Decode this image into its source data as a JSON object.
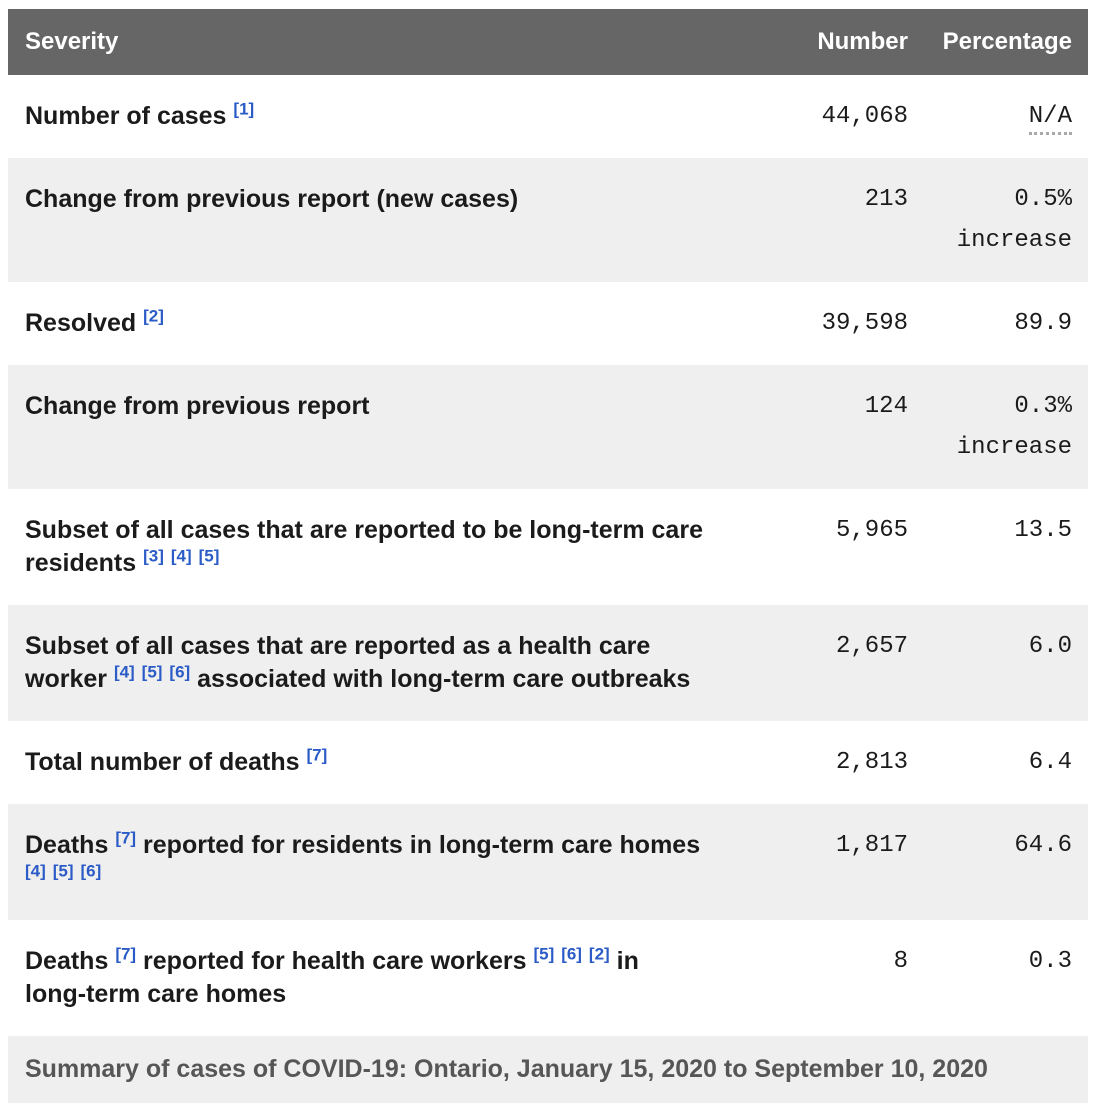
{
  "colors": {
    "header_bg": "#666666",
    "header_text": "#ffffff",
    "shaded_row_bg": "#efefef",
    "label_text": "#1b1b1b",
    "footnote_link": "#2a5bc6",
    "caption_text": "#565656"
  },
  "table": {
    "columns": [
      {
        "label": "Severity"
      },
      {
        "label": "Number"
      },
      {
        "label": "Percentage"
      }
    ],
    "rows": [
      {
        "label_parts": [
          {
            "text": "Number of cases "
          },
          {
            "fn": "[1]"
          }
        ],
        "number": "44,068",
        "pct": "N/A",
        "pct_abbr": true,
        "shaded": false
      },
      {
        "label_parts": [
          {
            "text": "Change from previous report (new cases)"
          }
        ],
        "number": "213",
        "pct": "0.5%\nincrease",
        "shaded": true
      },
      {
        "label_parts": [
          {
            "text": "Resolved "
          },
          {
            "fn": "[2]"
          }
        ],
        "number": "39,598",
        "pct": "89.9",
        "shaded": false
      },
      {
        "label_parts": [
          {
            "text": "Change from previous report"
          }
        ],
        "number": "124",
        "pct": "0.3%\nincrease",
        "shaded": true
      },
      {
        "label_parts": [
          {
            "text": "Subset of all cases that are reported to be long-term care residents "
          },
          {
            "fn": "[3]"
          },
          {
            "text": " "
          },
          {
            "fn": "[4]"
          },
          {
            "text": " "
          },
          {
            "fn": "[5]"
          }
        ],
        "number": "5,965",
        "pct": "13.5",
        "shaded": false
      },
      {
        "label_parts": [
          {
            "text": "Subset of all cases that are reported as a health care worker "
          },
          {
            "fn": "[4]"
          },
          {
            "text": " "
          },
          {
            "fn": "[5]"
          },
          {
            "text": " "
          },
          {
            "fn": "[6]"
          },
          {
            "text": " associated with long-term care outbreaks"
          }
        ],
        "number": "2,657",
        "pct": "6.0",
        "shaded": true
      },
      {
        "label_parts": [
          {
            "text": "Total number of deaths "
          },
          {
            "fn": "[7]"
          }
        ],
        "number": "2,813",
        "pct": "6.4",
        "shaded": false
      },
      {
        "label_parts": [
          {
            "text": "Deaths "
          },
          {
            "fn": "[7]"
          },
          {
            "text": " reported for residents in long-term care homes "
          },
          {
            "fn": "[4]"
          },
          {
            "text": " "
          },
          {
            "fn": "[5]"
          },
          {
            "text": " "
          },
          {
            "fn": "[6]"
          }
        ],
        "number": "1,817",
        "pct": "64.6",
        "shaded": true
      },
      {
        "label_parts": [
          {
            "text": "Deaths "
          },
          {
            "fn": "[7]"
          },
          {
            "text": " reported for health care workers "
          },
          {
            "fn": "[5]"
          },
          {
            "text": " "
          },
          {
            "fn": "[6]"
          },
          {
            "text": " "
          },
          {
            "fn": "[2]"
          },
          {
            "text": " in long-term care homes"
          }
        ],
        "number": "8",
        "pct": "0.3",
        "shaded": false
      }
    ],
    "caption": "Summary of cases of COVID-19: Ontario, January 15, 2020 to September 10, 2020"
  }
}
